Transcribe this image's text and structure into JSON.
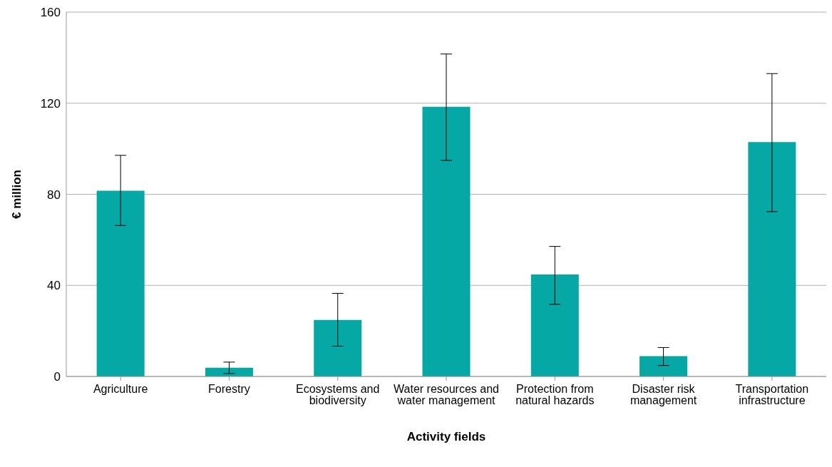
{
  "chart_data": {
    "type": "bar",
    "xlabel": "Activity fields",
    "ylabel": "€ million",
    "categories": [
      "Agriculture",
      "Forestry",
      "Ecosystems and biodiversity",
      "Water resources and water management",
      "Protection from natural hazards",
      "Disaster risk management",
      "Transportation infrastructure"
    ],
    "values": [
      81.6,
      3.8,
      24.8,
      118.4,
      44.8,
      8.9,
      102.9
    ],
    "errors": [
      [
        66.3,
        97.1
      ],
      [
        1.3,
        6.3
      ],
      [
        13.3,
        36.5
      ],
      [
        94.9,
        141.6
      ],
      [
        31.7,
        57.1
      ],
      [
        4.8,
        12.7
      ],
      [
        72.4,
        133
      ]
    ],
    "color": "#05a8a5",
    "ylim": [
      0,
      160
    ],
    "yticks": [
      0,
      40,
      80,
      120,
      160
    ],
    "grid": "y"
  }
}
